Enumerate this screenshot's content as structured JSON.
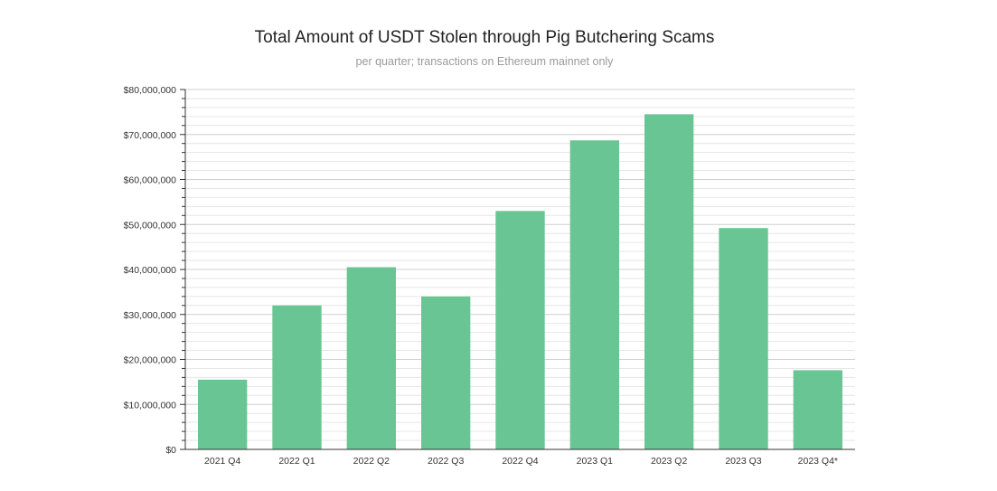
{
  "title": "Total Amount of USDT Stolen through Pig Butchering Scams",
  "subtitle": "per quarter; transactions on Ethereum mainnet only",
  "chart_data": {
    "type": "bar",
    "title": "Total Amount of USDT Stolen through Pig Butchering Scams",
    "subtitle": "per quarter; transactions on Ethereum mainnet only",
    "categories": [
      "2021 Q4",
      "2022 Q1",
      "2022 Q2",
      "2022 Q3",
      "2022 Q4",
      "2023 Q1",
      "2023 Q2",
      "2023 Q3",
      "2023 Q4*"
    ],
    "values": [
      15500000,
      32000000,
      40500000,
      34000000,
      53000000,
      68700000,
      74500000,
      49200000,
      17600000
    ],
    "ylim": [
      0,
      80000000
    ],
    "yticks": [
      0,
      10000000,
      20000000,
      30000000,
      40000000,
      50000000,
      60000000,
      70000000,
      80000000
    ],
    "ytick_labels": [
      "$0",
      "$10,000,000",
      "$20,000,000",
      "$30,000,000",
      "$40,000,000",
      "$50,000,000",
      "$60,000,000",
      "$70,000,000",
      "$80,000,000"
    ],
    "minor_step": 2000000,
    "grid": true,
    "bar_color": "#69c593",
    "xlabel": "",
    "ylabel": ""
  }
}
